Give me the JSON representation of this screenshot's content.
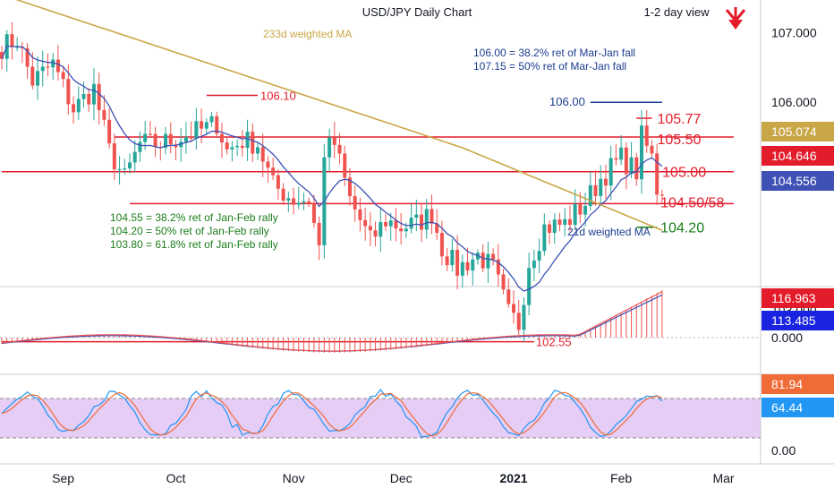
{
  "colors": {
    "up": "#26a69a",
    "down": "#ef5350",
    "level": "#e31c2b",
    "ma233": "#c9a646",
    "ma21": "#3f51b5",
    "note_blue": "#1b3d8f",
    "note_green": "#1b7d1b",
    "stoch_fill": "#e6cdf6",
    "stoch_k": "#2196f3",
    "stoch_d": "#ef6c37",
    "macd_hist": "#ef5350",
    "grid_text": "#131722"
  },
  "chart_data": {
    "type": "candlestick",
    "title": "USD/JPY Daily Chart",
    "horizon": "1-2 day view",
    "bias_icon": "arrow-down-icon",
    "x_labels": [
      {
        "label": "Sep",
        "bar": 12,
        "bold": false
      },
      {
        "label": "Oct",
        "bar": 34,
        "bold": false
      },
      {
        "label": "Nov",
        "bar": 57,
        "bold": false
      },
      {
        "label": "Dec",
        "bar": 78,
        "bold": false
      },
      {
        "label": "2021",
        "bar": 100,
        "bold": true
      },
      {
        "label": "Feb",
        "bar": 121,
        "bold": false
      },
      {
        "label": "Mar",
        "bar": 141,
        "bold": false
      }
    ],
    "price_axis": {
      "ticks": [
        "107.000",
        "106.000",
        "103.000"
      ],
      "range": [
        102.4,
        107.5
      ]
    },
    "price_badges": [
      {
        "value": "105.074",
        "color": "#c9a646"
      },
      {
        "value": "104.646",
        "color": "#e31c2b"
      },
      {
        "value": "104.556",
        "color": "#3f51b5"
      }
    ],
    "levels": [
      {
        "label": "106.10",
        "value": 106.1,
        "from_bar": 40,
        "to_bar": 50,
        "color": "#e31c2b",
        "label_color": "#e31c2b"
      },
      {
        "label": "105.77",
        "value": 105.77,
        "from_bar": 124,
        "to_bar": 127,
        "color": "#e31c2b",
        "label_color": "#e31c2b"
      },
      {
        "label": "105.50",
        "value": 105.5,
        "from_bar": 22,
        "to_bar": 143,
        "color": "#e31c2b",
        "label_color": "#e31c2b"
      },
      {
        "label": "105.00",
        "value": 105.0,
        "from_bar": 0,
        "to_bar": 143,
        "color": "#e31c2b",
        "label_color": "#e31c2b"
      },
      {
        "label": "104.50/58",
        "value": 104.54,
        "from_bar": 25,
        "to_bar": 143,
        "color": "#e31c2b",
        "label_color": "#e31c2b"
      },
      {
        "label": "104.20",
        "value": 104.2,
        "from_bar": 124,
        "to_bar": 128,
        "color": "#1b7d1b",
        "label_color": "#1b7d1b"
      },
      {
        "label": "106.00",
        "value": 106.0,
        "from_bar": 115,
        "to_bar": 129,
        "color": "#1b3d8f",
        "label_color": "#1b3d8f"
      },
      {
        "label": "102.55",
        "value": 102.55,
        "from_bar": 0,
        "to_bar": 104,
        "color": "#e31c2b",
        "label_color": "#e31c2b"
      }
    ],
    "annotations": {
      "ma233_label": "233d weighted MA",
      "ma21_label": "21d weighted MA",
      "fib_mar_jan": [
        "106.00 = 38.2% ret of Mar-Jan fall",
        "107.15 = 50% ret of Mar-Jan fall"
      ],
      "fib_jan_feb": [
        "104.55 = 38.2% ret of Jan-Feb rally",
        "104.20 = 50% ret of Jan-Feb rally",
        "103.80 = 61.8% ret of Jan-Feb rally"
      ]
    },
    "macd": {
      "badges": [
        {
          "value": "116.963",
          "color": "#e31c2b"
        },
        {
          "value": "113.485",
          "color": "#1a23e0"
        }
      ],
      "ticks": [
        "0.000"
      ]
    },
    "stochastic": {
      "badges": [
        {
          "value": "81.94",
          "color": "#ef6c37"
        },
        {
          "value": "64.44",
          "color": "#2196f3"
        }
      ],
      "ticks": [
        "0.00"
      ]
    },
    "waypoints": [
      [
        0,
        106.8
      ],
      [
        3,
        106.9
      ],
      [
        6,
        106.3
      ],
      [
        10,
        106.55
      ],
      [
        14,
        105.9
      ],
      [
        18,
        106.2
      ],
      [
        21,
        105.3
      ],
      [
        24,
        104.9
      ],
      [
        27,
        105.4
      ],
      [
        31,
        105.4
      ],
      [
        35,
        105.5
      ],
      [
        39,
        105.6
      ],
      [
        42,
        105.7
      ],
      [
        44,
        105.3
      ],
      [
        47,
        105.45
      ],
      [
        50,
        105.4
      ],
      [
        53,
        104.8
      ],
      [
        57,
        104.6
      ],
      [
        60,
        104.6
      ],
      [
        62,
        103.9
      ],
      [
        63,
        105.3
      ],
      [
        65,
        105.4
      ],
      [
        68,
        104.6
      ],
      [
        72,
        104.0
      ],
      [
        75,
        104.3
      ],
      [
        78,
        104.2
      ],
      [
        81,
        104.25
      ],
      [
        84,
        104.4
      ],
      [
        86,
        103.9
      ],
      [
        89,
        103.6
      ],
      [
        93,
        103.8
      ],
      [
        96,
        103.6
      ],
      [
        99,
        102.95
      ],
      [
        101,
        102.8
      ],
      [
        103,
        103.7
      ],
      [
        106,
        104.2
      ],
      [
        110,
        104.25
      ],
      [
        114,
        104.55
      ],
      [
        117,
        104.9
      ],
      [
        121,
        105.2
      ],
      [
        124,
        105.0
      ],
      [
        125,
        105.5
      ],
      [
        127,
        105.2
      ],
      [
        128,
        104.75
      ]
    ]
  }
}
